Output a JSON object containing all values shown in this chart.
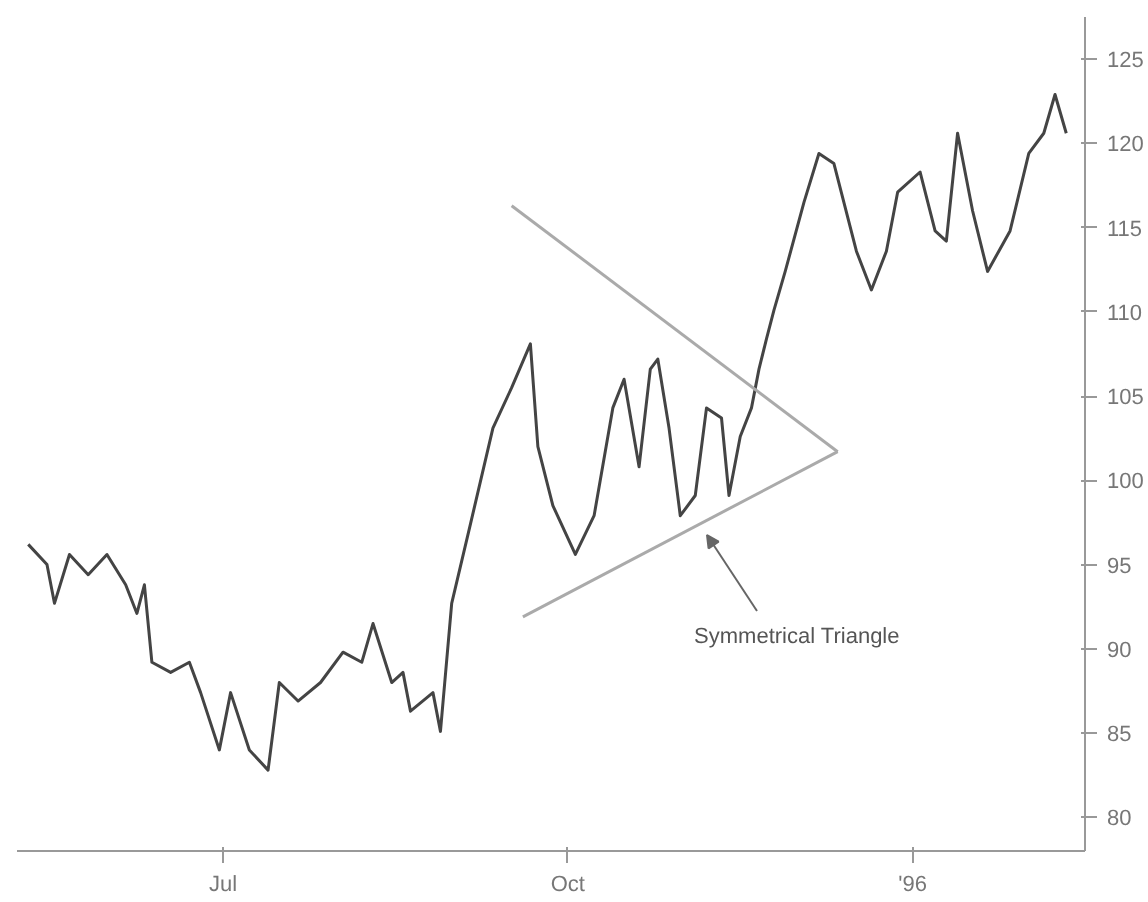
{
  "chart_data": {
    "type": "line",
    "xlim": [
      "1995-05-07",
      "1996-02-16"
    ],
    "ylim": [
      78,
      127.5
    ],
    "xticks": [
      {
        "value": "1995-07-01",
        "label": "Jul"
      },
      {
        "value": "1995-10-01",
        "label": "Oct"
      },
      {
        "value": "1996-01-01",
        "label": "'96"
      }
    ],
    "yticks": [
      80,
      85,
      90,
      95,
      100,
      105,
      110,
      115,
      120,
      125
    ],
    "grid": false,
    "series": [
      {
        "color": "#444444",
        "x": [
          "1995-05-10",
          "1995-05-15",
          "1995-05-17",
          "1995-05-21",
          "1995-05-26",
          "1995-05-31",
          "1995-06-05",
          "1995-06-08",
          "1995-06-10",
          "1995-06-12",
          "1995-06-17",
          "1995-06-22",
          "1995-06-25",
          "1995-06-30",
          "1995-07-03",
          "1995-07-08",
          "1995-07-13",
          "1995-07-16",
          "1995-07-21",
          "1995-07-27",
          "1995-08-02",
          "1995-08-07",
          "1995-08-10",
          "1995-08-15",
          "1995-08-18",
          "1995-08-20",
          "1995-08-26",
          "1995-08-28",
          "1995-08-31",
          "1995-09-05",
          "1995-09-11",
          "1995-09-16",
          "1995-09-21",
          "1995-09-23",
          "1995-09-27",
          "1995-10-03",
          "1995-10-08",
          "1995-10-13",
          "1995-10-16",
          "1995-10-20",
          "1995-10-23",
          "1995-10-25",
          "1995-10-28",
          "1995-10-31",
          "1995-11-04",
          "1995-11-07",
          "1995-11-11",
          "1995-11-13",
          "1995-11-16",
          "1995-11-19",
          "1995-11-21",
          "1995-11-23",
          "1995-11-25",
          "1995-11-28",
          "1995-12-03",
          "1995-12-07",
          "1995-12-11",
          "1995-12-17",
          "1995-12-21",
          "1995-12-25",
          "1995-12-28",
          "1996-01-03",
          "1996-01-07",
          "1996-01-10",
          "1996-01-13",
          "1996-01-17",
          "1996-01-21",
          "1996-01-24",
          "1996-01-27",
          "1996-02-01",
          "1996-02-05",
          "1996-02-08",
          "1996-02-11"
        ],
        "values": [
          96.2,
          95.0,
          92.7,
          95.6,
          94.4,
          95.6,
          93.8,
          92.1,
          93.8,
          89.2,
          88.6,
          89.2,
          87.4,
          84.0,
          87.4,
          84.0,
          82.8,
          88.0,
          86.9,
          88.0,
          89.8,
          89.2,
          91.5,
          88.0,
          88.6,
          86.3,
          87.4,
          85.1,
          92.7,
          97.4,
          103.1,
          105.5,
          108.1,
          102.0,
          98.5,
          95.6,
          97.9,
          104.3,
          106.0,
          100.8,
          106.6,
          107.2,
          103.1,
          97.9,
          99.1,
          104.3,
          103.7,
          99.1,
          102.6,
          104.3,
          106.6,
          108.4,
          110.1,
          112.4,
          116.5,
          119.4,
          118.8,
          113.6,
          111.3,
          113.6,
          117.1,
          118.3,
          114.8,
          114.2,
          120.6,
          116.0,
          112.4,
          113.6,
          114.8,
          119.4,
          120.6,
          122.9,
          120.6
        ]
      },
      {
        "type": "line",
        "color": "#aaaaaa",
        "x": [
          "1995-09-16",
          "1995-12-12"
        ],
        "values": [
          116.3,
          101.7
        ]
      },
      {
        "type": "line",
        "color": "#aaaaaa",
        "x": [
          "1995-09-19",
          "1995-12-12"
        ],
        "values": [
          91.9,
          101.7
        ]
      }
    ],
    "annotations": [
      "Symmetrical Triangle"
    ]
  }
}
